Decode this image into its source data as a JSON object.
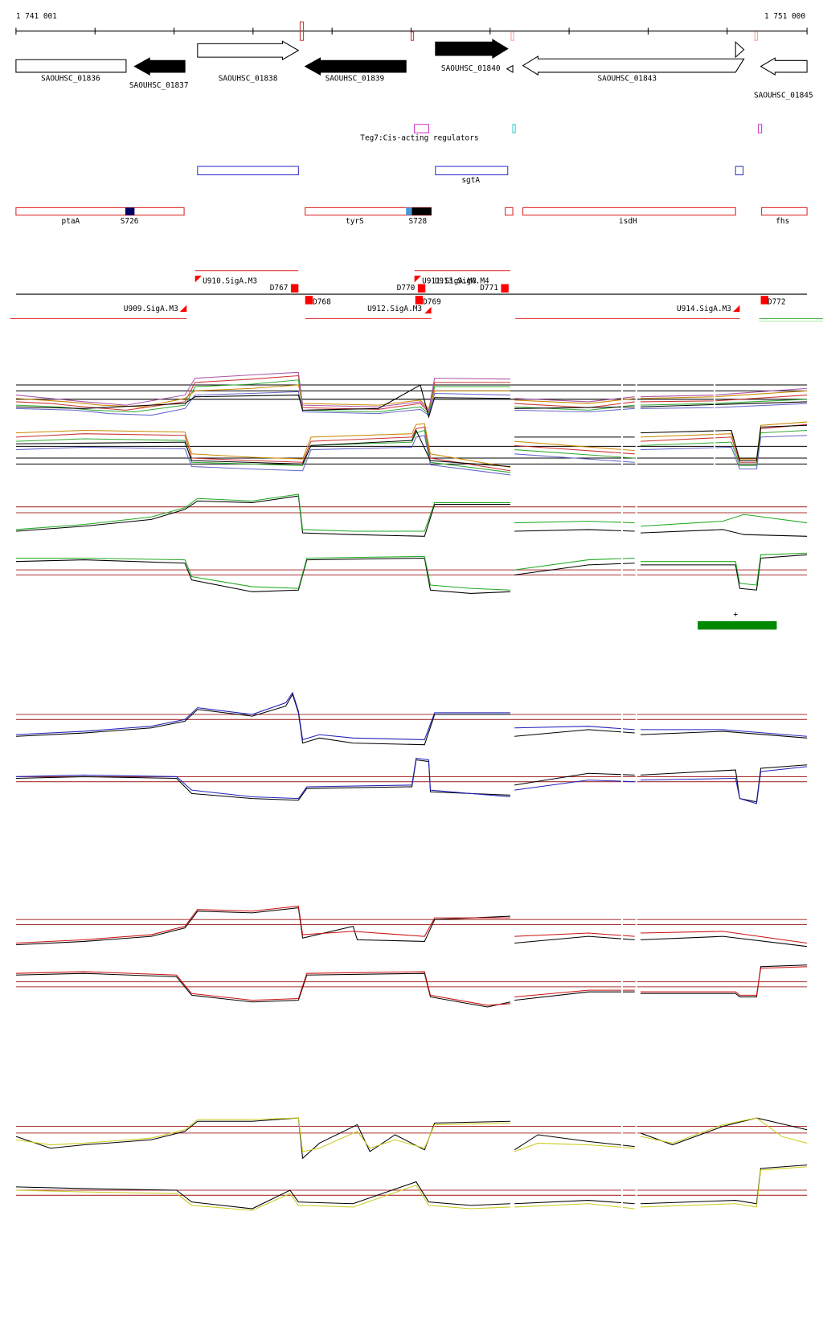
{
  "ruler": {
    "start": "1 741 001",
    "end": "1 751 000"
  },
  "genes": [
    "SAOUHSC_01836",
    "SAOUHSC_01837",
    "SAOUHSC_01838",
    "SAOUHSC_01839",
    "SAOUHSC_01840",
    "SAOUHSC_01843",
    "SAOUHSC_01845"
  ],
  "regulators": {
    "label": "Teg7:Cis-acting regulators"
  },
  "blue_features": [
    "sgtA"
  ],
  "red_features": [
    "ptaA",
    "S726",
    "tyrS",
    "S728",
    "isdH",
    "fhs"
  ],
  "promoters": [
    "U910.SigA.M3",
    "D767",
    "U909.SigA.M3",
    "D768",
    "D770",
    "U911.SigA.M3",
    "U913.SigA.M4",
    "D769",
    "U912.SigA.M3",
    "D771",
    "U914.SigA.M3",
    "D772"
  ],
  "marker": "+"
}
